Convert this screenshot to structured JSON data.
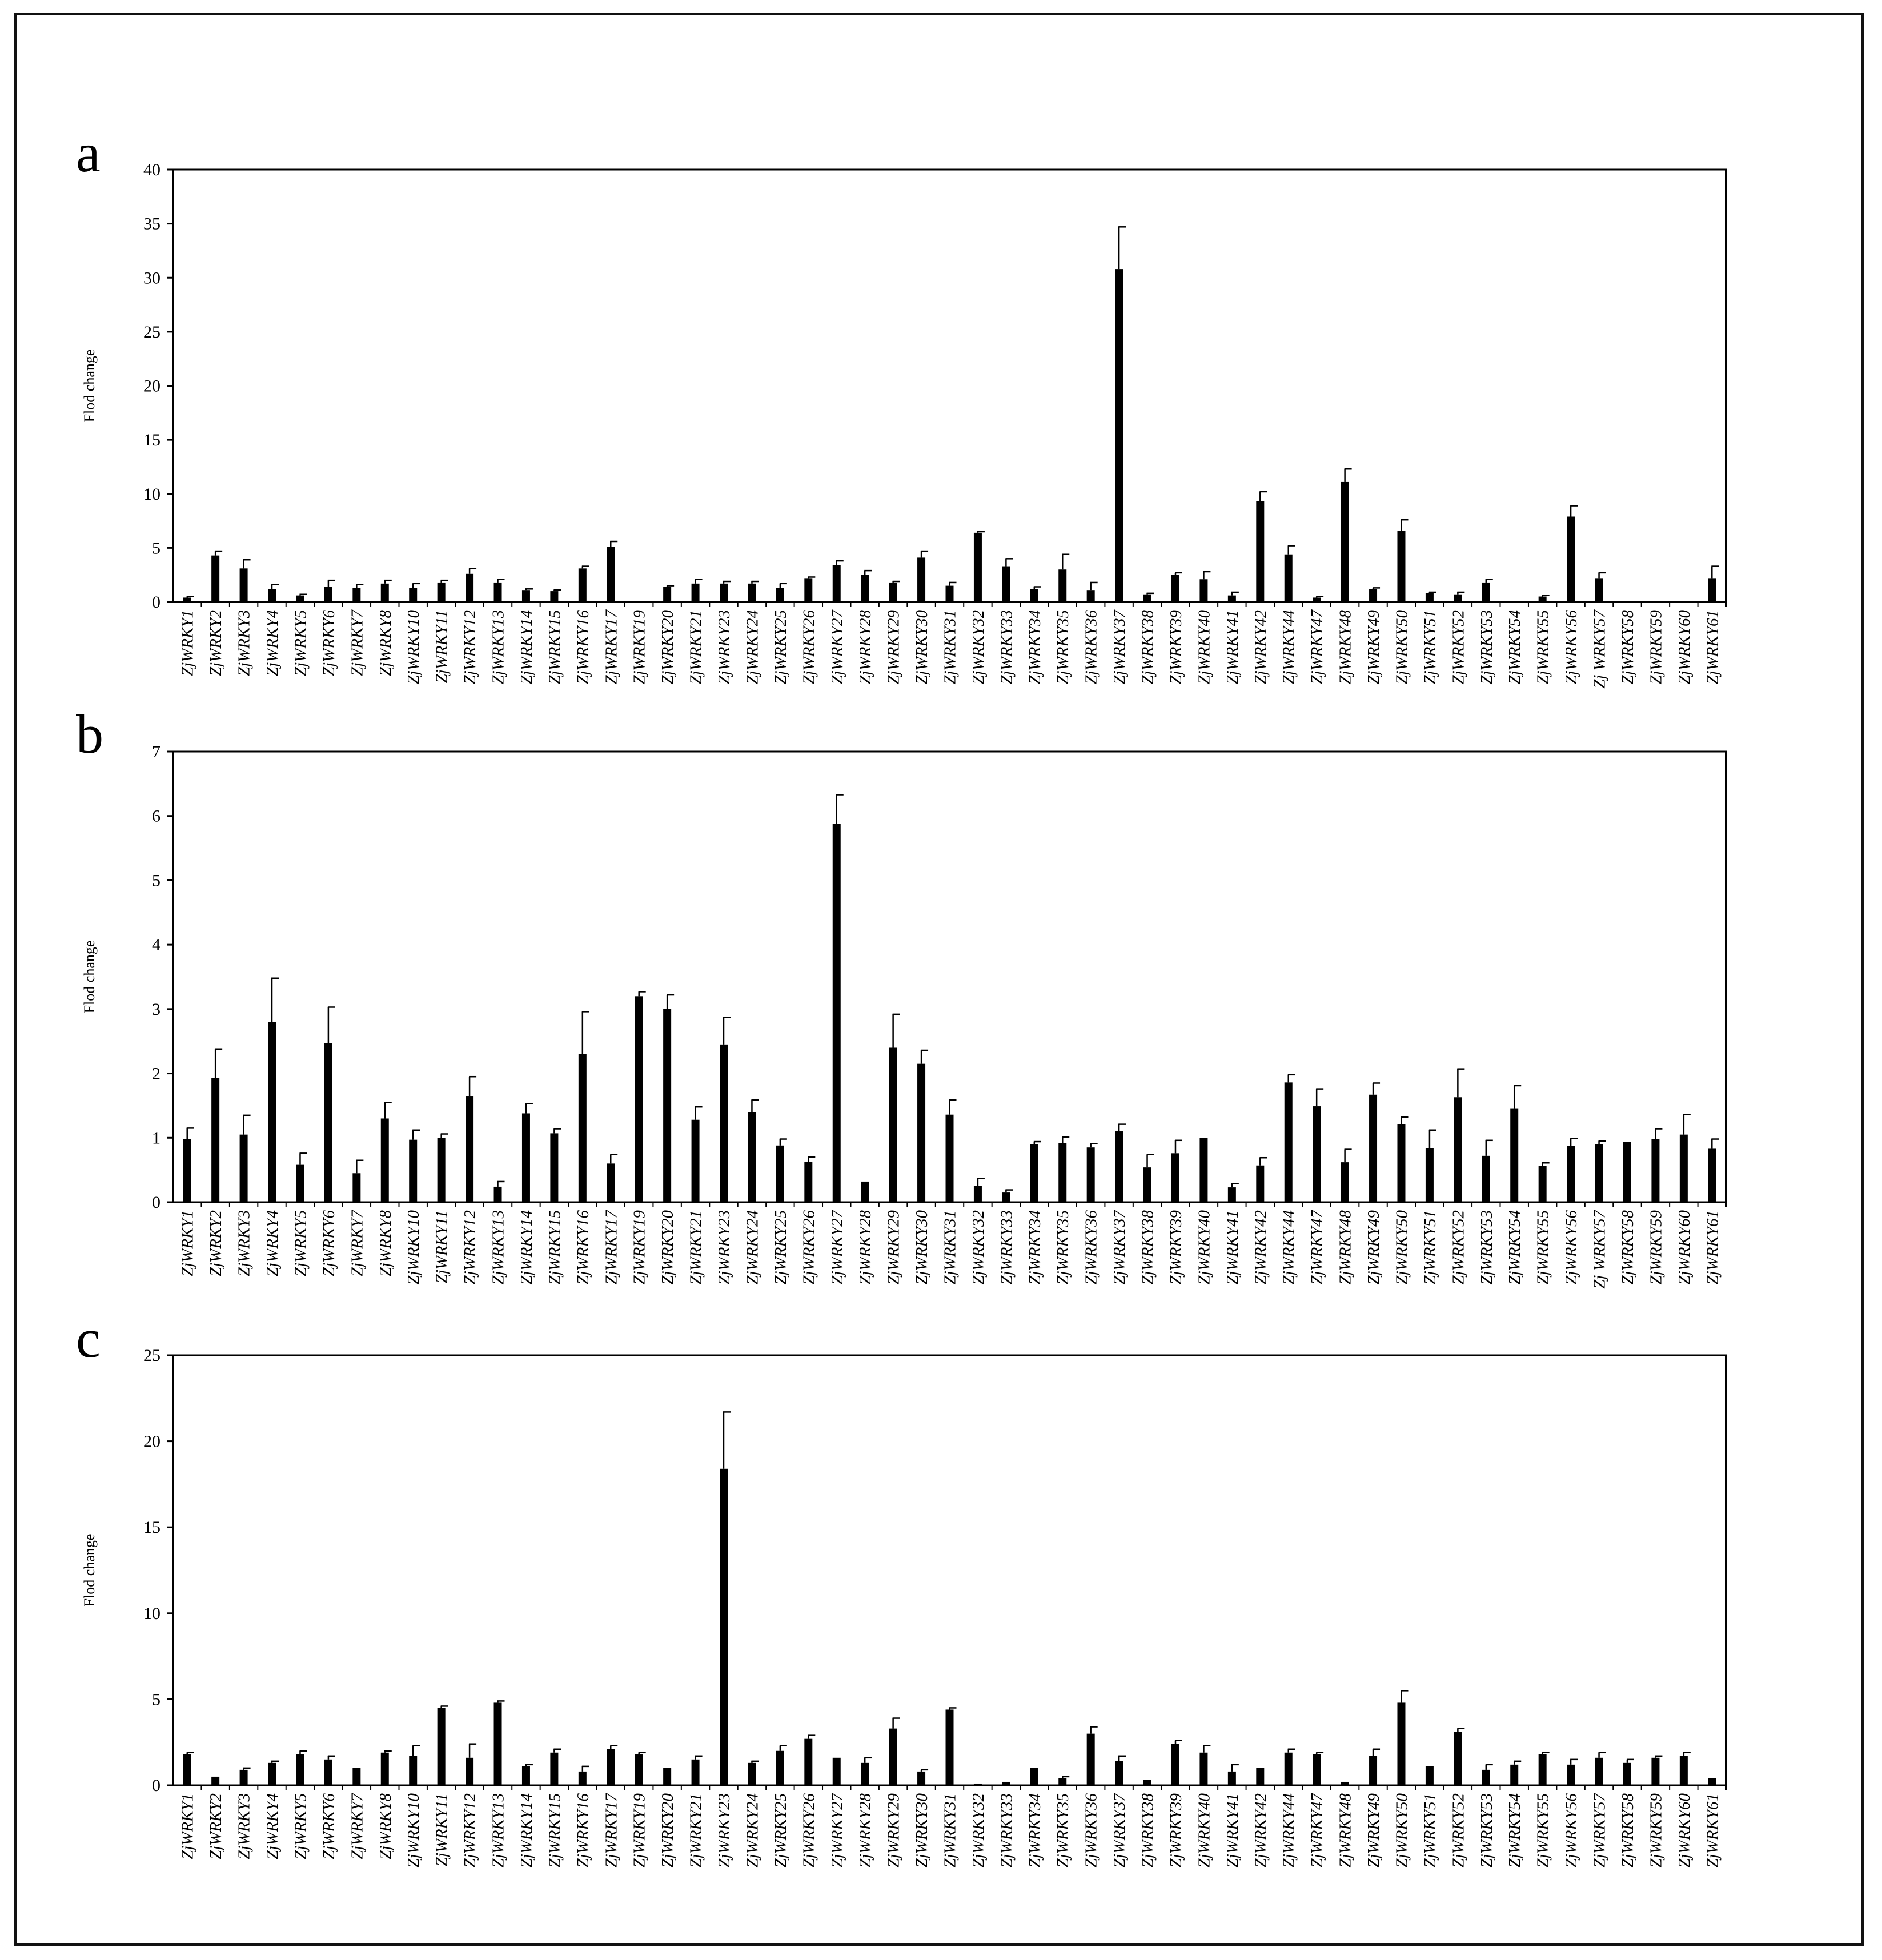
{
  "colors": {
    "bar": "#000000",
    "axis": "#000000",
    "background": "#ffffff",
    "frame": "#111111"
  },
  "chart_data": [
    {
      "type": "bar",
      "panel_label": "a",
      "ylabel": "Flod change",
      "ylim": [
        0,
        40
      ],
      "yticks": [
        0,
        5,
        10,
        15,
        20,
        25,
        30,
        35,
        40
      ],
      "categories": [
        "ZjWRKY1",
        "ZjWRKY2",
        "ZjWRKY3",
        "ZjWRKY4",
        "ZjWRKY5",
        "ZjWRKY6",
        "ZjWRKY7",
        "ZjWRKY8",
        "ZjWRKY10",
        "ZjWRKY11",
        "ZjWRKY12",
        "ZjWRKY13",
        "ZjWRKY14",
        "ZjWRKY15",
        "ZjWRKY16",
        "ZjWRKY17",
        "ZjWRKY19",
        "ZjWRKY20",
        "ZjWRKY21",
        "ZjWRKY23",
        "ZjWRKY24",
        "ZjWRKY25",
        "ZjWRKY26",
        "ZjWRKY27",
        "ZjWRKY28",
        "ZjWRKY29",
        "ZjWRKY30",
        "ZjWRKY31",
        "ZjWRKY32",
        "ZjWRKY33",
        "ZjWRKY34",
        "ZjWRKY35",
        "ZjWRKY36",
        "ZjWRKY37",
        "ZjWRKY38",
        "ZjWRKY39",
        "ZjWRKY40",
        "ZjWRKY41",
        "ZjWRKY42",
        "ZjWRKY44",
        "ZjWRKY47",
        "ZjWRKY48",
        "ZjWRKY49",
        "ZjWRKY50",
        "ZjWRKY51",
        "ZjWRKY52",
        "ZjWRKY53",
        "ZjWRKY54",
        "ZjWRKY55",
        "ZjWRKY56",
        "Zj WRKY57",
        "ZjWRKY58",
        "ZjWRKY59",
        "ZjWRKY60",
        "ZjWRKY61"
      ],
      "values": [
        0.4,
        4.3,
        3.1,
        1.2,
        0.6,
        1.4,
        1.3,
        1.7,
        1.3,
        1.8,
        2.6,
        1.8,
        1.1,
        1.0,
        3.1,
        5.1,
        0.05,
        1.4,
        1.7,
        1.7,
        1.7,
        1.3,
        2.2,
        3.4,
        2.5,
        1.8,
        4.1,
        1.5,
        6.4,
        3.3,
        1.2,
        3.0,
        1.1,
        30.8,
        0.7,
        2.5,
        2.1,
        0.6,
        9.3,
        4.4,
        0.4,
        11.1,
        1.2,
        6.6,
        0.8,
        0.7,
        1.8,
        0.1,
        0.5,
        7.9,
        2.2,
        0.05,
        0.05,
        0.05,
        2.2
      ],
      "errors": [
        0.1,
        0.4,
        0.8,
        0.4,
        0.1,
        0.6,
        0.3,
        0.3,
        0.4,
        0.2,
        0.5,
        0.3,
        0.1,
        0.1,
        0.2,
        0.5,
        0.0,
        0.1,
        0.4,
        0.2,
        0.2,
        0.4,
        0.1,
        0.4,
        0.4,
        0.1,
        0.6,
        0.3,
        0.1,
        0.7,
        0.2,
        1.4,
        0.7,
        3.9,
        0.1,
        0.2,
        0.7,
        0.3,
        0.9,
        0.8,
        0.1,
        1.2,
        0.1,
        1.0,
        0.1,
        0.2,
        0.3,
        0.0,
        0.1,
        1.0,
        0.5,
        0.0,
        0.0,
        0.0,
        1.1
      ]
    },
    {
      "type": "bar",
      "panel_label": "b",
      "ylabel": "Flod change",
      "ylim": [
        0,
        7
      ],
      "yticks": [
        0,
        1,
        2,
        3,
        4,
        5,
        6,
        7
      ],
      "categories": [
        "ZjWRKY1",
        "ZjWRKY2",
        "ZjWRKY3",
        "ZjWRKY4",
        "ZjWRKY5",
        "ZjWRKY6",
        "ZjWRKY7",
        "ZjWRKY8",
        "ZjWRKY10",
        "ZjWRKY11",
        "ZjWRKY12",
        "ZjWRKY13",
        "ZjWRKY14",
        "ZjWRKY15",
        "ZjWRKY16",
        "ZjWRKY17",
        "ZjWRKY19",
        "ZjWRKY20",
        "ZjWRKY21",
        "ZjWRKY23",
        "ZjWRKY24",
        "ZjWRKY25",
        "ZjWRKY26",
        "ZjWRKY27",
        "ZjWRKY28",
        "ZjWRKY29",
        "ZjWRKY30",
        "ZjWRKY31",
        "ZjWRKY32",
        "ZjWRKY33",
        "ZjWRKY34",
        "ZjWRKY35",
        "ZjWRKY36",
        "ZjWRKY37",
        "ZjWRKY38",
        "ZjWRKY39",
        "ZjWRKY40",
        "ZjWRKY41",
        "ZjWRKY42",
        "ZjWRKY44",
        "ZjWRKY47",
        "ZjWRKY48",
        "ZjWRKY49",
        "ZjWRKY50",
        "ZjWRKY51",
        "ZjWRKY52",
        "ZjWRKY53",
        "ZjWRKY54",
        "ZjWRKY55",
        "ZjWRKY56",
        "Zj WRKY57",
        "ZjWRKY58",
        "ZjWRKY59",
        "ZjWRKY60",
        "ZjWRKY61"
      ],
      "values": [
        0.98,
        1.93,
        1.05,
        2.8,
        0.58,
        2.47,
        0.45,
        1.3,
        0.97,
        1.0,
        1.65,
        0.24,
        1.38,
        1.07,
        2.3,
        0.6,
        3.2,
        3.0,
        1.28,
        2.45,
        1.4,
        0.88,
        0.63,
        5.88,
        0.32,
        2.4,
        2.15,
        1.36,
        0.25,
        0.15,
        0.9,
        0.92,
        0.85,
        1.1,
        0.54,
        0.76,
        1.0,
        0.23,
        0.57,
        1.86,
        1.49,
        0.62,
        1.67,
        1.21,
        0.84,
        1.63,
        0.72,
        1.45,
        0.56,
        0.87,
        0.9,
        0.94,
        0.98,
        1.05,
        0.83
      ],
      "errors": [
        0.17,
        0.45,
        0.3,
        0.68,
        0.18,
        0.56,
        0.2,
        0.25,
        0.15,
        0.06,
        0.3,
        0.08,
        0.15,
        0.07,
        0.66,
        0.14,
        0.07,
        0.22,
        0.2,
        0.42,
        0.19,
        0.1,
        0.07,
        0.45,
        0.0,
        0.52,
        0.21,
        0.23,
        0.12,
        0.04,
        0.04,
        0.09,
        0.06,
        0.11,
        0.2,
        0.2,
        0.0,
        0.06,
        0.12,
        0.12,
        0.27,
        0.2,
        0.18,
        0.11,
        0.28,
        0.44,
        0.24,
        0.36,
        0.05,
        0.12,
        0.05,
        0.0,
        0.16,
        0.31,
        0.15
      ]
    },
    {
      "type": "bar",
      "panel_label": "c",
      "ylabel": "Flod change",
      "ylim": [
        0,
        25
      ],
      "yticks": [
        0,
        5,
        10,
        15,
        20,
        25
      ],
      "categories": [
        "ZjWRKY1",
        "ZjWRKY2",
        "ZjWRKY3",
        "ZjWRKY4",
        "ZjWRKY5",
        "ZjWRKY6",
        "ZjWRKY7",
        "ZjWRKY8",
        "ZjWRKY10",
        "ZjWRKY11",
        "ZjWRKY12",
        "ZjWRKY13",
        "ZjWRKY14",
        "ZjWRKY15",
        "ZjWRKY16",
        "ZjWRKY17",
        "ZjWRKY19",
        "ZjWRKY20",
        "ZjWRKY21",
        "ZjWRKY23",
        "ZjWRKY24",
        "ZjWRKY25",
        "ZjWRKY26",
        "ZjWRKY27",
        "ZjWRKY28",
        "ZjWRKY29",
        "ZjWRKY30",
        "ZjWRKY31",
        "ZjWRKY32",
        "ZjWRKY33",
        "ZjWRKY34",
        "ZjWRKY35",
        "ZjWRKY36",
        "ZjWRKY37",
        "ZjWRKY38",
        "ZjWRKY39",
        "ZjWRKY40",
        "ZjWRKY41",
        "ZjWRKY42",
        "ZjWRKY44",
        "ZjWRKY47",
        "ZjWRKY48",
        "ZjWRKY49",
        "ZjWRKY50",
        "ZjWRKY51",
        "ZjWRKY52",
        "ZjWRKY53",
        "ZjWRKY54",
        "ZjWRKY55",
        "ZjWRKY56",
        "ZjWRKY57",
        "ZjWRKY58",
        "ZjWRKY59",
        "ZjWRKY60",
        "ZjWRKY61"
      ],
      "values": [
        1.8,
        0.5,
        0.9,
        1.3,
        1.8,
        1.5,
        1.0,
        1.9,
        1.7,
        4.5,
        1.6,
        4.8,
        1.1,
        1.9,
        0.8,
        2.1,
        1.8,
        1.0,
        1.5,
        18.4,
        1.3,
        2.0,
        2.7,
        1.6,
        1.3,
        3.3,
        0.8,
        4.4,
        0.1,
        0.2,
        1.0,
        0.4,
        3.0,
        1.4,
        0.3,
        2.4,
        1.9,
        0.8,
        1.0,
        1.9,
        1.8,
        0.2,
        1.7,
        4.8,
        1.1,
        3.1,
        0.9,
        1.2,
        1.8,
        1.2,
        1.6,
        1.3,
        1.6,
        1.7,
        0.4
      ],
      "errors": [
        0.1,
        0.0,
        0.1,
        0.1,
        0.2,
        0.2,
        0.0,
        0.1,
        0.6,
        0.1,
        0.8,
        0.1,
        0.1,
        0.2,
        0.3,
        0.2,
        0.1,
        0.0,
        0.2,
        3.3,
        0.1,
        0.3,
        0.2,
        0.0,
        0.3,
        0.6,
        0.1,
        0.1,
        0.0,
        0.0,
        0.0,
        0.1,
        0.4,
        0.3,
        0.0,
        0.2,
        0.4,
        0.4,
        0.0,
        0.2,
        0.1,
        0.0,
        0.4,
        0.7,
        0.0,
        0.2,
        0.3,
        0.2,
        0.1,
        0.3,
        0.3,
        0.2,
        0.1,
        0.2,
        0.0
      ]
    }
  ]
}
